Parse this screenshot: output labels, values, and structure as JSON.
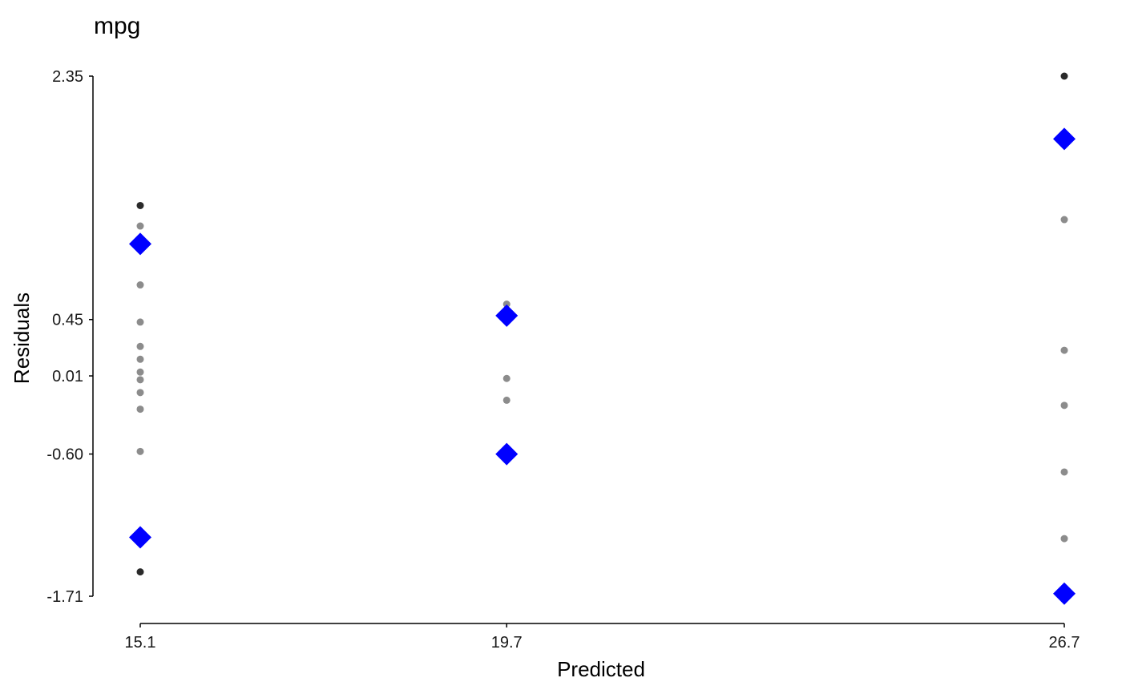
{
  "chart_data": {
    "type": "scatter",
    "title": "mpg",
    "xlabel": "Predicted",
    "ylabel": "Residuals",
    "x_ticks": [
      "15.1",
      "19.7",
      "26.7"
    ],
    "y_ticks": [
      "2.35",
      "0.45",
      "0.01",
      "-0.60",
      "-1.71"
    ],
    "xlim": [
      15.1,
      26.7
    ],
    "ylim": [
      -1.71,
      2.35
    ],
    "grid": false,
    "legend": "none",
    "colors": {
      "point": "#8c8c8c",
      "outlier": "#2a2a2a",
      "quantile": "#0000ff"
    },
    "series": [
      {
        "marker": "circle",
        "color": "#8c8c8c",
        "points": [
          {
            "x": 15.1,
            "y": 1.18
          },
          {
            "x": 15.1,
            "y": 0.72
          },
          {
            "x": 15.1,
            "y": 0.43
          },
          {
            "x": 15.1,
            "y": 0.24
          },
          {
            "x": 15.1,
            "y": 0.14
          },
          {
            "x": 15.1,
            "y": 0.04
          },
          {
            "x": 15.1,
            "y": -0.02
          },
          {
            "x": 15.1,
            "y": -0.12
          },
          {
            "x": 15.1,
            "y": -0.25
          },
          {
            "x": 15.1,
            "y": -0.58
          },
          {
            "x": 19.7,
            "y": 0.57
          },
          {
            "x": 19.7,
            "y": -0.01
          },
          {
            "x": 19.7,
            "y": -0.18
          },
          {
            "x": 26.7,
            "y": 1.23
          },
          {
            "x": 26.7,
            "y": 0.21
          },
          {
            "x": 26.7,
            "y": -0.22
          },
          {
            "x": 26.7,
            "y": -0.74
          },
          {
            "x": 26.7,
            "y": -1.26
          }
        ]
      },
      {
        "marker": "circle",
        "color": "#2a2a2a",
        "points": [
          {
            "x": 15.1,
            "y": 1.34
          },
          {
            "x": 15.1,
            "y": -1.52
          },
          {
            "x": 26.7,
            "y": 2.35
          }
        ]
      },
      {
        "marker": "diamond",
        "color": "#0000ff",
        "points": [
          {
            "x": 15.1,
            "y": 1.04
          },
          {
            "x": 15.1,
            "y": -1.25
          },
          {
            "x": 19.7,
            "y": 0.48
          },
          {
            "x": 19.7,
            "y": -0.6
          },
          {
            "x": 26.7,
            "y": 1.86
          },
          {
            "x": 26.7,
            "y": -1.69
          }
        ]
      }
    ]
  }
}
